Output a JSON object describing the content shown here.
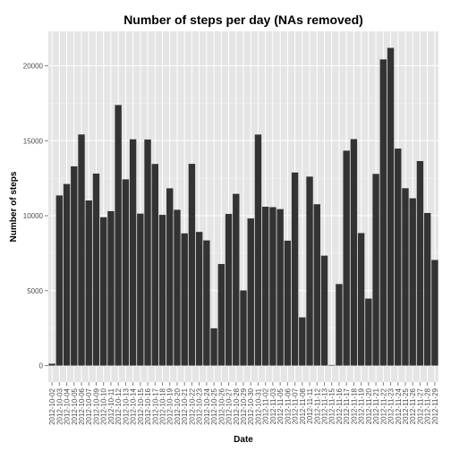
{
  "chart_data": {
    "type": "bar",
    "title": "Number of steps per day (NAs removed)",
    "xlabel": "Date",
    "ylabel": "Number of steps",
    "ylim": [
      -1100,
      22300
    ],
    "yticks": [
      0,
      5000,
      10000,
      15000,
      20000
    ],
    "grid": true,
    "legend": "none",
    "colors": {
      "panel": "#e5e5e5",
      "grid_major": "#ffffff",
      "grid_minor": "#f2f2f2",
      "bar": "#333333",
      "tick_text": "#4d4d4d"
    },
    "categories": [
      "2012-10-02",
      "2012-10-03",
      "2012-10-04",
      "2012-10-05",
      "2012-10-06",
      "2012-10-07",
      "2012-10-09",
      "2012-10-10",
      "2012-10-11",
      "2012-10-12",
      "2012-10-13",
      "2012-10-14",
      "2012-10-15",
      "2012-10-16",
      "2012-10-17",
      "2012-10-18",
      "2012-10-19",
      "2012-10-20",
      "2012-10-21",
      "2012-10-22",
      "2012-10-23",
      "2012-10-24",
      "2012-10-25",
      "2012-10-26",
      "2012-10-27",
      "2012-10-28",
      "2012-10-29",
      "2012-10-30",
      "2012-10-31",
      "2012-11-02",
      "2012-11-03",
      "2012-11-05",
      "2012-11-06",
      "2012-11-07",
      "2012-11-08",
      "2012-11-11",
      "2012-11-12",
      "2012-11-13",
      "2012-11-15",
      "2012-11-16",
      "2012-11-17",
      "2012-11-18",
      "2012-11-19",
      "2012-11-20",
      "2012-11-21",
      "2012-11-22",
      "2012-11-23",
      "2012-11-24",
      "2012-11-25",
      "2012-11-26",
      "2012-11-27",
      "2012-11-28",
      "2012-11-29"
    ],
    "values": [
      126,
      11352,
      12116,
      13294,
      15420,
      11015,
      12811,
      9900,
      10304,
      17382,
      12426,
      15098,
      10139,
      15084,
      13452,
      10056,
      11829,
      10395,
      8821,
      13460,
      8918,
      8355,
      2492,
      6778,
      10119,
      11458,
      5018,
      9819,
      15414,
      10600,
      10571,
      10439,
      8334,
      12883,
      3219,
      12608,
      10765,
      7336,
      41,
      5441,
      14339,
      15110,
      8841,
      4472,
      12787,
      20427,
      21194,
      14478,
      11834,
      11162,
      13646,
      10183,
      7047
    ],
    "tick_labels": [
      "2012-10-02",
      "2012-10-03",
      "2012-10-04",
      "2012-10-05",
      "2012-10-06",
      "2012-10-07",
      "2012-10-09",
      "2012-10-10",
      "2012-10-11",
      "2012-10-12",
      "2012-10-13",
      "2012-10-14",
      "2012-10-15",
      "2012-10-16",
      "2012-10-17",
      "2012-10-18",
      "2012-10-19",
      "2012-10-20",
      "2012-10-21",
      "2012-10-22",
      "2012-10-23",
      "2012-10-24",
      "2012-10-25",
      "2012-10-26",
      "2012-10-27",
      "2012-10-28",
      "2012-10-29",
      "2012-10-30",
      "2012-10-31",
      "2012-11-02",
      "2012-11-03",
      "2012-11-05",
      "2012-11-06",
      "2012-11-07",
      "2012-11-08",
      "2012-11-11",
      "2012-11-12",
      "2012-11-13",
      "2012-11-15",
      "2012-11-16",
      "2012-11-17",
      "2012-11-18",
      "2012-11-19",
      "2012-11-20",
      "2012-11-21",
      "2012-11-22",
      "2012-11-23",
      "2012-11-24",
      "2012-11-25",
      "2012-11-26",
      "2012-11-27",
      "2012-11-28",
      "2012-11-29"
    ]
  }
}
